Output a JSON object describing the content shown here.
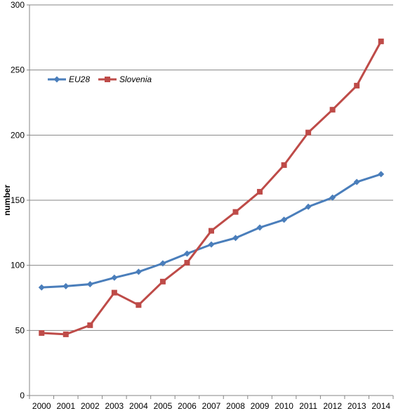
{
  "chart_data": {
    "type": "line",
    "title": "",
    "xlabel": "",
    "ylabel": "number",
    "categories": [
      "2000",
      "2001",
      "2002",
      "2003",
      "2004",
      "2005",
      "2006",
      "2007",
      "2008",
      "2009",
      "2010",
      "2011",
      "2012",
      "2013",
      "2014"
    ],
    "ylim": [
      0,
      300
    ],
    "yticks": [
      0,
      50,
      100,
      150,
      200,
      250,
      300
    ],
    "grid": true,
    "legend_position": "top-left",
    "series": [
      {
        "name": "EU28",
        "color": "#4a7ebb",
        "marker": "diamond",
        "values": [
          83,
          84,
          85.5,
          90.5,
          95,
          101.5,
          109,
          116,
          121,
          129,
          135,
          145,
          152,
          164,
          170
        ]
      },
      {
        "name": "Slovenia",
        "color": "#be4b48",
        "marker": "square",
        "values": [
          48,
          47,
          54,
          79,
          69.5,
          87.5,
          102,
          126.5,
          141,
          156.5,
          177,
          202,
          219.5,
          238,
          272
        ]
      }
    ]
  }
}
